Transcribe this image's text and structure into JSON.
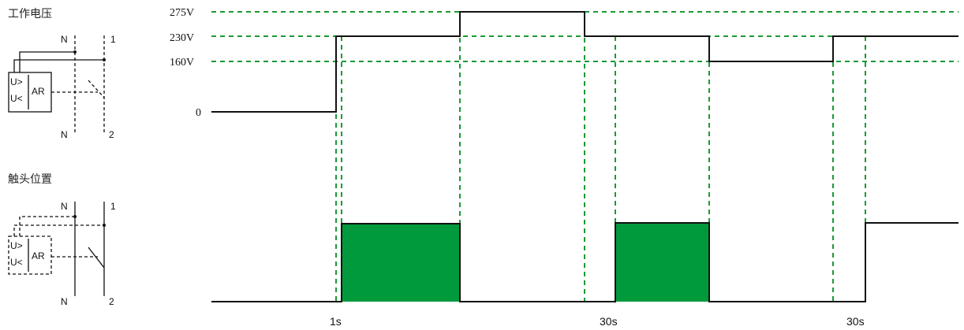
{
  "headings": {
    "voltage": "工作电压",
    "contact": "触头位置"
  },
  "symbols": {
    "top": {
      "n_top": "N",
      "term1": "1",
      "u_upper": "U>",
      "u_lower": "U<",
      "module": "AR",
      "n_bottom": "N",
      "term2": "2"
    },
    "bottom": {
      "n_top": "N",
      "term1": "1",
      "u_upper": "U>",
      "u_lower": "U<",
      "module": "AR",
      "n_bottom": "N",
      "term2": "2"
    }
  },
  "voltage_levels": {
    "v275": "275V",
    "v230": "230V",
    "v160": "160V",
    "v0": "0"
  },
  "time_labels": {
    "t1": "1s",
    "t2": "30s",
    "t3": "30s"
  },
  "colors": {
    "guide": "#1a9a34",
    "contact_fill": "#009a3c",
    "line": "#111111"
  }
}
